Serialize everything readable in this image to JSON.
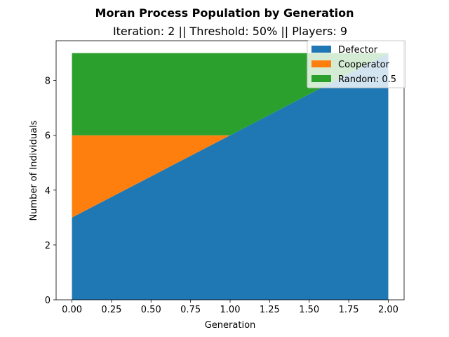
{
  "chart_data": {
    "type": "area",
    "stacked": true,
    "title": "Moran Process Population by Generation",
    "subtitle": "Iteration: 2 || Threshold: 50% || Players: 9",
    "xlabel": "Generation",
    "ylabel": "Number of Individuals",
    "x": [
      0,
      1,
      2
    ],
    "xlim": [
      -0.1,
      2.1
    ],
    "ylim": [
      0,
      9.45
    ],
    "xticks": [
      0.0,
      0.25,
      0.5,
      0.75,
      1.0,
      1.25,
      1.5,
      1.75,
      2.0
    ],
    "xtick_labels": [
      "0.00",
      "0.25",
      "0.50",
      "0.75",
      "1.00",
      "1.25",
      "1.50",
      "1.75",
      "2.00"
    ],
    "yticks": [
      0,
      2,
      4,
      6,
      8
    ],
    "ytick_labels": [
      "0",
      "2",
      "4",
      "6",
      "8"
    ],
    "grid": false,
    "legend_position": "top-right",
    "series": [
      {
        "name": "Defector",
        "values": [
          3,
          6,
          9
        ],
        "color": "#1f77b4"
      },
      {
        "name": "Cooperator",
        "values": [
          3,
          0,
          0
        ],
        "color": "#ff7f0e"
      },
      {
        "name": "Random: 0.5",
        "values": [
          3,
          3,
          0
        ],
        "color": "#2ca02c"
      }
    ]
  }
}
